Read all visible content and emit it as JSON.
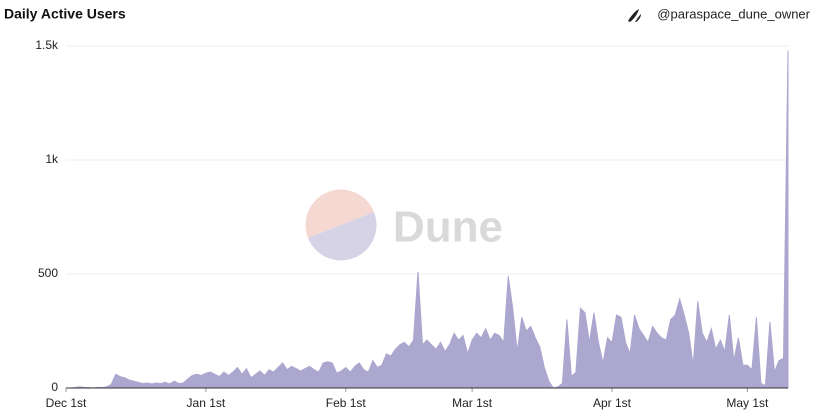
{
  "chart_data": {
    "type": "area",
    "title": "Daily Active Users",
    "author": "@paraspace_dune_owner",
    "watermark": "Dune",
    "color": "#aba7cf",
    "grid": true,
    "xlim": [
      0,
      160
    ],
    "ylim": [
      0,
      1500
    ],
    "xticks": [
      {
        "value": 0,
        "label": "Dec 1st"
      },
      {
        "value": 31,
        "label": "Jan 1st"
      },
      {
        "value": 62,
        "label": "Feb 1st"
      },
      {
        "value": 90,
        "label": "Mar 1st"
      },
      {
        "value": 121,
        "label": "Apr 1st"
      },
      {
        "value": 151,
        "label": "May 1st"
      }
    ],
    "yticks": [
      0,
      500,
      {
        "value": 1000,
        "label": "1k"
      },
      {
        "value": 1500,
        "label": "1.5k"
      }
    ],
    "x": [
      0,
      1,
      2,
      3,
      4,
      5,
      6,
      7,
      8,
      9,
      10,
      11,
      12,
      13,
      14,
      15,
      16,
      17,
      18,
      19,
      20,
      21,
      22,
      23,
      24,
      25,
      26,
      27,
      28,
      29,
      30,
      31,
      32,
      33,
      34,
      35,
      36,
      37,
      38,
      39,
      40,
      41,
      42,
      43,
      44,
      45,
      46,
      47,
      48,
      49,
      50,
      51,
      52,
      53,
      54,
      55,
      56,
      57,
      58,
      59,
      60,
      61,
      62,
      63,
      64,
      65,
      66,
      67,
      68,
      69,
      70,
      71,
      72,
      73,
      74,
      75,
      76,
      77,
      78,
      79,
      80,
      81,
      82,
      83,
      84,
      85,
      86,
      87,
      88,
      89,
      90,
      91,
      92,
      93,
      94,
      95,
      96,
      97,
      98,
      99,
      100,
      101,
      102,
      103,
      104,
      105,
      106,
      107,
      108,
      109,
      110,
      111,
      112,
      113,
      114,
      115,
      116,
      117,
      118,
      119,
      120,
      121,
      122,
      123,
      124,
      125,
      126,
      127,
      128,
      129,
      130,
      131,
      132,
      133,
      134,
      135,
      136,
      137,
      138,
      139,
      140,
      141,
      142,
      143,
      144,
      145,
      146,
      147,
      148,
      149,
      150,
      151,
      152,
      153,
      154,
      155,
      156,
      157,
      158,
      159,
      160
    ],
    "values": [
      0,
      0,
      2,
      5,
      3,
      2,
      0,
      3,
      2,
      5,
      15,
      60,
      50,
      45,
      35,
      30,
      25,
      20,
      22,
      18,
      22,
      20,
      25,
      18,
      30,
      20,
      22,
      40,
      55,
      60,
      55,
      65,
      70,
      60,
      50,
      70,
      55,
      70,
      90,
      60,
      85,
      45,
      60,
      75,
      55,
      80,
      70,
      90,
      110,
      80,
      95,
      85,
      75,
      85,
      95,
      80,
      70,
      110,
      115,
      110,
      65,
      75,
      90,
      70,
      95,
      110,
      80,
      70,
      120,
      90,
      100,
      150,
      140,
      170,
      190,
      200,
      180,
      210,
      510,
      190,
      210,
      190,
      170,
      200,
      160,
      190,
      240,
      210,
      230,
      150,
      210,
      240,
      220,
      260,
      210,
      240,
      230,
      200,
      490,
      350,
      160,
      310,
      250,
      270,
      220,
      180,
      90,
      30,
      0,
      5,
      20,
      300,
      50,
      70,
      350,
      330,
      200,
      330,
      200,
      110,
      220,
      200,
      320,
      310,
      200,
      150,
      320,
      260,
      230,
      200,
      270,
      240,
      220,
      210,
      300,
      320,
      390,
      320,
      240,
      100,
      380,
      240,
      200,
      260,
      170,
      210,
      160,
      320,
      120,
      220,
      100,
      100,
      80,
      310,
      20,
      10,
      290,
      70,
      120,
      130,
      1480
    ]
  }
}
